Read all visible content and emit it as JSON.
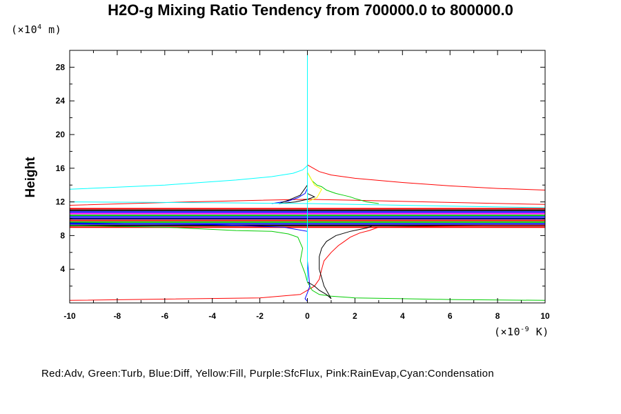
{
  "chart_data": {
    "type": "line",
    "title": "H2O-g Mixing Ratio Tendency from 700000.0 to 800000.0",
    "ylabel": "Height",
    "y_unit": {
      "prefix": "(×10",
      "exp": "4",
      "suffix": " m)"
    },
    "x_unit": {
      "prefix": "(×10",
      "exp": "-9",
      "suffix": " K)"
    },
    "xlim": [
      -10,
      10
    ],
    "ylim": [
      0,
      30
    ],
    "x_ticks": [
      -10,
      -8,
      -6,
      -4,
      -2,
      0,
      2,
      4,
      6,
      8,
      10
    ],
    "y_ticks": [
      4,
      8,
      12,
      16,
      20,
      24,
      28
    ],
    "grid": false,
    "legend_caption": "Red:Adv, Green:Turb, Blue:Diff, Yellow:Fill, Purple:SfcFlux, Pink:RainEvap,Cyan:Condensation",
    "series": [
      {
        "color": "#ff0000",
        "x": [
          -10,
          -2,
          -0.3,
          0,
          0.3,
          0.5,
          0.6,
          0.7,
          1.0,
          1.3,
          1.5,
          1.8,
          2.2,
          2.6,
          2.8,
          3,
          5,
          8,
          10
        ],
        "y": [
          0.3,
          0.6,
          1.0,
          1.5,
          2.0,
          2.8,
          4.0,
          5.0,
          6.0,
          6.8,
          7.2,
          7.8,
          8.3,
          8.6,
          8.8,
          9.0,
          9.1,
          9.2,
          9.2
        ]
      },
      {
        "color": "#ff0000",
        "x": [
          0,
          0.5,
          1,
          2,
          4,
          6,
          8,
          10
        ],
        "y": [
          16.4,
          15.6,
          15.2,
          14.8,
          14.3,
          13.9,
          13.6,
          13.4
        ]
      },
      {
        "color": "#ff0000",
        "x": [
          -10,
          -5,
          -2,
          0,
          2,
          5,
          10
        ],
        "y": [
          11.6,
          12.0,
          12.2,
          12.3,
          12.2,
          12.0,
          11.7
        ]
      },
      {
        "color": "#00cc00",
        "x": [
          0,
          0.2,
          0.4,
          0.6,
          0.8,
          1.0,
          1.2,
          1.5,
          1.8,
          2.0,
          2.5,
          3.0
        ],
        "y": [
          15.5,
          14.5,
          14.0,
          13.8,
          13.4,
          13.2,
          13.0,
          12.8,
          12.6,
          12.4,
          12.0,
          11.8
        ]
      },
      {
        "color": "#00cc00",
        "x": [
          -10,
          -6,
          -3,
          -1.5,
          -0.8,
          -0.4,
          -0.2,
          -0.3,
          -0.1,
          0,
          0.2,
          0.5,
          1,
          2,
          4,
          6,
          10
        ],
        "y": [
          9.2,
          9.0,
          8.6,
          8.5,
          8.2,
          7.8,
          6.5,
          5.0,
          3.5,
          2.5,
          1.5,
          1.0,
          0.8,
          0.6,
          0.5,
          0.4,
          0.3
        ]
      },
      {
        "color": "#0000ff",
        "x": [
          -10,
          -4,
          -1,
          0,
          0,
          0.1,
          0,
          -0.1,
          0
        ],
        "y": [
          9.5,
          9.3,
          9.0,
          8.5,
          5.0,
          2.0,
          1.2,
          0.5,
          0.2
        ]
      },
      {
        "color": "#0000ff",
        "x": [
          -1.5,
          -0.8,
          -0.4,
          -0.1,
          0,
          0,
          0
        ],
        "y": [
          11.8,
          12.1,
          12.5,
          13.0,
          13.6,
          14.5,
          15.5
        ]
      },
      {
        "color": "#ffff00",
        "x": [
          0,
          0.3,
          0.6,
          0.4,
          0
        ],
        "y": [
          15.5,
          14.0,
          13.5,
          12.5,
          12.0
        ]
      },
      {
        "color": "#000000",
        "x": [
          0,
          0.3,
          0.5,
          0.8,
          1.0,
          0.7,
          0.5,
          0.5,
          0.6,
          0.8,
          1.2,
          1.8,
          2.5,
          2.7
        ],
        "y": [
          2.5,
          2.0,
          1.5,
          1.0,
          0.5,
          2.0,
          4.0,
          5.5,
          6.5,
          7.3,
          8.0,
          8.5,
          8.9,
          9.1
        ]
      },
      {
        "color": "#000000",
        "x": [
          0,
          -0.3,
          -0.8,
          -1.2,
          -0.5,
          0,
          0.3,
          0
        ],
        "y": [
          14.0,
          12.8,
          12.2,
          11.8,
          12.0,
          12.3,
          12.6,
          13.0
        ]
      },
      {
        "color": "#00ffff",
        "x": [
          -10,
          -6,
          -3,
          -1.5,
          -0.6,
          -0.2,
          0
        ],
        "y": [
          13.5,
          14.0,
          14.6,
          15.0,
          15.4,
          15.8,
          16.3
        ]
      },
      {
        "color": "#00ffff",
        "x": [
          0,
          0,
          0,
          0,
          0
        ],
        "y": [
          30,
          16.3,
          12.0,
          9.0,
          2.5
        ]
      },
      {
        "color": "#00ffff",
        "x": [
          -10,
          -4,
          0,
          4,
          10
        ],
        "y": [
          12.0,
          11.9,
          11.8,
          11.6,
          11.3
        ]
      }
    ],
    "bands": [
      {
        "y": 11.2,
        "color": "#ff0000"
      },
      {
        "y": 11.0,
        "color": "#000000"
      },
      {
        "y": 10.8,
        "color": "#0000ff"
      },
      {
        "y": 10.6,
        "color": "#ff00ff"
      },
      {
        "y": 10.4,
        "color": "#00cc00"
      },
      {
        "y": 10.2,
        "color": "#0000ff"
      },
      {
        "y": 10.0,
        "color": "#000080"
      },
      {
        "y": 9.8,
        "color": "#ff0000"
      },
      {
        "y": 9.6,
        "color": "#00cc00"
      },
      {
        "y": 9.4,
        "color": "#0000ff"
      },
      {
        "y": 9.2,
        "color": "#000000"
      },
      {
        "y": 9.0,
        "color": "#ff0000"
      }
    ]
  }
}
